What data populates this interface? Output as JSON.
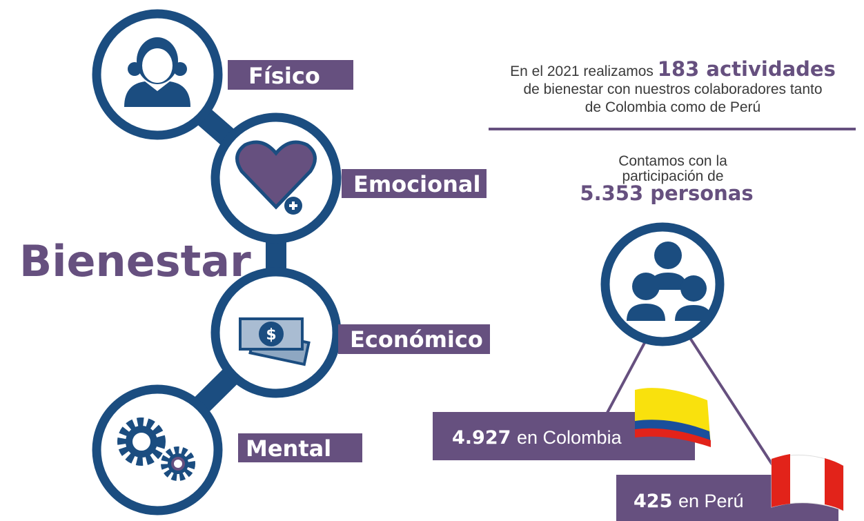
{
  "title": "Bienestar",
  "dimensions": [
    "Físico",
    "Emocional",
    "Económico",
    "Mental"
  ],
  "summary": {
    "lead": "En el 2021 realizamos",
    "highlight": "183 actividades",
    "line2": "de bienestar con nuestros colaboradores tanto",
    "line3": "de Colombia como de Perú"
  },
  "participation": {
    "line1": "Contamos con la",
    "line2": "participación de",
    "highlight": "5.353 personas"
  },
  "countries": [
    {
      "number": "4.927",
      "text": "en Colombia"
    },
    {
      "number": "425",
      "text": "en Perú"
    }
  ]
}
